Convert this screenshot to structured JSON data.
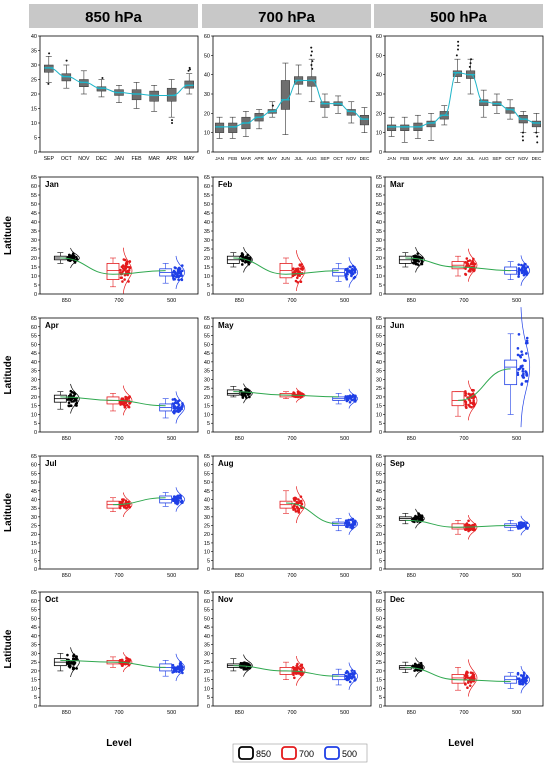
{
  "top_headers": [
    "850 hPa",
    "700 hPa",
    "500 hPa"
  ],
  "y_axis_title": "Latitude",
  "x_axis_title": "Level",
  "legend": {
    "entries": [
      {
        "label": "850",
        "color": "#000000"
      },
      {
        "label": "700",
        "color": "#e31a1c"
      },
      {
        "label": "500",
        "color": "#1f3fe6"
      }
    ]
  },
  "colors": {
    "header_bg": "#c8c8c8",
    "top_box_fill": "#6e6e6e",
    "top_median": "#1fb5c9",
    "top_curve": "#1fb5c9",
    "fit_curve": "#2fa84f"
  },
  "chart_data": [
    {
      "type": "box",
      "panel": "top-850",
      "categories": [
        "SEP",
        "OCT",
        "NOV",
        "DEC",
        "JAN",
        "FEB",
        "MAR",
        "APR",
        "MAY"
      ],
      "ylim": [
        0,
        40
      ],
      "yticks": [
        0,
        5,
        10,
        15,
        20,
        25,
        30,
        35,
        40
      ],
      "median": [
        29,
        26,
        24,
        22,
        20.5,
        20,
        19.5,
        19.5,
        23
      ],
      "q1": [
        27.5,
        24.5,
        22.5,
        21,
        19.5,
        18,
        17.5,
        17.5,
        22
      ],
      "q3": [
        30,
        27,
        25,
        22.5,
        21.5,
        21.5,
        21,
        22,
        24.5
      ],
      "whisker_low": [
        24,
        22,
        20,
        19,
        17,
        15,
        14,
        12,
        20
      ],
      "whisker_high": [
        33,
        30,
        28,
        25,
        23,
        24,
        23,
        25,
        27
      ],
      "outliers": [
        [
          34,
          23.5
        ],
        [
          31.5
        ],
        [],
        [
          25.5
        ],
        [],
        [],
        [],
        [
          10,
          11
        ],
        [
          28,
          28.5,
          29
        ]
      ]
    },
    {
      "type": "box",
      "panel": "top-700",
      "categories": [
        "JAN",
        "FEB",
        "MAR",
        "APR",
        "MAY",
        "JUN",
        "JUL",
        "AUG",
        "SEP",
        "OCT",
        "NOV",
        "DEC"
      ],
      "ylim": [
        0,
        60
      ],
      "yticks": [
        0,
        10,
        20,
        30,
        40,
        50,
        60
      ],
      "median": [
        13,
        13,
        15,
        18,
        21,
        27,
        37,
        37,
        25,
        25,
        21,
        17
      ],
      "q1": [
        10,
        10,
        12,
        16,
        20,
        22,
        35,
        34,
        23,
        24,
        19,
        14
      ],
      "q3": [
        15,
        15,
        18,
        20,
        22,
        37,
        39,
        39,
        26,
        26,
        22,
        19
      ],
      "whisker_low": [
        7,
        7,
        8,
        12,
        18,
        9,
        30,
        26,
        18,
        20,
        15,
        10
      ],
      "whisker_high": [
        18,
        18,
        21,
        22,
        26,
        46,
        45,
        48,
        30,
        29,
        26,
        23
      ],
      "outliers": [
        [],
        [],
        [],
        [],
        [
          24
        ],
        [],
        [],
        [
          43,
          45,
          47,
          50,
          52,
          54
        ],
        [],
        [],
        [],
        []
      ]
    },
    {
      "type": "box",
      "panel": "top-500",
      "categories": [
        "JAN",
        "FEB",
        "MAR",
        "APR",
        "MAY",
        "JUN",
        "JUL",
        "AUG",
        "SEP",
        "OCT",
        "NOV",
        "DEC"
      ],
      "ylim": [
        0,
        60
      ],
      "yticks": [
        0,
        10,
        20,
        30,
        40,
        50,
        60
      ],
      "median": [
        13,
        13,
        13,
        15,
        19,
        41,
        40,
        26,
        25,
        22,
        17,
        15
      ],
      "q1": [
        11,
        11,
        11,
        13,
        17,
        39,
        38,
        24,
        24,
        20,
        15,
        13
      ],
      "q3": [
        14,
        14,
        15,
        16,
        21,
        42,
        42,
        27,
        26,
        23,
        19,
        16
      ],
      "whisker_low": [
        8,
        5,
        7,
        6,
        14,
        36,
        30,
        18,
        20,
        17,
        10,
        10
      ],
      "whisker_high": [
        18,
        18,
        19,
        20,
        24,
        48,
        48,
        32,
        30,
        27,
        21,
        20
      ],
      "outliers": [
        [],
        [],
        [],
        [],
        [],
        [
          50,
          53,
          55,
          57
        ],
        [
          44,
          46,
          48
        ],
        [],
        [],
        [],
        [
          6,
          8,
          10
        ],
        [
          5,
          8,
          10
        ]
      ]
    },
    {
      "type": "box-scatter",
      "panel": "month",
      "title": "Jan",
      "categories": [
        "850",
        "700",
        "500"
      ],
      "ylim": [
        0,
        65
      ],
      "median": [
        20,
        13,
        12
      ],
      "q1": [
        19,
        8,
        10
      ],
      "q3": [
        21,
        17,
        14
      ],
      "whisker_low": [
        17,
        4,
        6
      ],
      "whisker_high": [
        23,
        20,
        17
      ],
      "fit": [
        20,
        11,
        13
      ]
    },
    {
      "type": "box-scatter",
      "panel": "month",
      "title": "Feb",
      "categories": [
        "850",
        "700",
        "500"
      ],
      "ylim": [
        0,
        65
      ],
      "median": [
        19,
        13,
        12
      ],
      "q1": [
        17,
        9,
        10
      ],
      "q3": [
        21,
        17,
        14
      ],
      "whisker_low": [
        15,
        6,
        7
      ],
      "whisker_high": [
        23,
        20,
        17
      ],
      "fit": [
        20,
        11,
        13
      ]
    },
    {
      "type": "box-scatter",
      "panel": "month",
      "title": "Mar",
      "categories": [
        "850",
        "700",
        "500"
      ],
      "ylim": [
        0,
        65
      ],
      "median": [
        19,
        16,
        13
      ],
      "q1": [
        17,
        14,
        11
      ],
      "q3": [
        21,
        18,
        15
      ],
      "whisker_low": [
        15,
        10,
        8
      ],
      "whisker_high": [
        23,
        21,
        18
      ],
      "fit": [
        20,
        15,
        13
      ]
    },
    {
      "type": "box-scatter",
      "panel": "month",
      "title": "Apr",
      "categories": [
        "850",
        "700",
        "500"
      ],
      "ylim": [
        0,
        65
      ],
      "median": [
        19,
        18,
        14
      ],
      "q1": [
        17,
        16,
        12
      ],
      "q3": [
        21,
        20,
        16
      ],
      "whisker_low": [
        13,
        12,
        8
      ],
      "whisker_high": [
        23,
        22,
        19
      ],
      "fit": [
        20,
        18,
        15
      ]
    },
    {
      "type": "box-scatter",
      "panel": "month",
      "title": "May",
      "categories": [
        "850",
        "700",
        "500"
      ],
      "ylim": [
        0,
        65
      ],
      "median": [
        22,
        21,
        19
      ],
      "q1": [
        21,
        20,
        18
      ],
      "q3": [
        24,
        22,
        20
      ],
      "whisker_low": [
        20,
        19,
        16
      ],
      "whisker_high": [
        26,
        23,
        22
      ],
      "fit": [
        23,
        21,
        20
      ]
    },
    {
      "type": "box-scatter",
      "panel": "month",
      "title": "Jun",
      "categories": [
        "850",
        "700",
        "500"
      ],
      "ylim": [
        0,
        65
      ],
      "median": [
        null,
        18,
        37
      ],
      "q1": [
        null,
        15,
        27
      ],
      "q3": [
        null,
        23,
        41
      ],
      "whisker_low": [
        null,
        9,
        10
      ],
      "whisker_high": [
        null,
        23,
        56
      ],
      "fit": [
        null,
        18,
        36
      ]
    },
    {
      "type": "box-scatter",
      "panel": "month",
      "title": "Jul",
      "categories": [
        "850",
        "700",
        "500"
      ],
      "ylim": [
        0,
        65
      ],
      "median": [
        null,
        37,
        40
      ],
      "q1": [
        null,
        35,
        38
      ],
      "q3": [
        null,
        39,
        42
      ],
      "whisker_low": [
        null,
        33,
        36
      ],
      "whisker_high": [
        null,
        41,
        44
      ],
      "fit": [
        null,
        37,
        41
      ]
    },
    {
      "type": "box-scatter",
      "panel": "month",
      "title": "Aug",
      "categories": [
        "850",
        "700",
        "500"
      ],
      "ylim": [
        0,
        65
      ],
      "median": [
        null,
        37,
        26
      ],
      "q1": [
        null,
        35,
        25
      ],
      "q3": [
        null,
        39,
        27
      ],
      "whisker_low": [
        null,
        32,
        22
      ],
      "whisker_high": [
        null,
        45,
        29
      ],
      "fit": [
        null,
        38,
        26
      ]
    },
    {
      "type": "box-scatter",
      "panel": "month",
      "title": "Sep",
      "categories": [
        "850",
        "700",
        "500"
      ],
      "ylim": [
        0,
        65
      ],
      "median": [
        29,
        24,
        25
      ],
      "q1": [
        28,
        23,
        24
      ],
      "q3": [
        30,
        26,
        26
      ],
      "whisker_low": [
        26,
        20,
        22
      ],
      "whisker_high": [
        32,
        28,
        28
      ],
      "fit": [
        28,
        24,
        25
      ]
    },
    {
      "type": "box-scatter",
      "panel": "month",
      "title": "Oct",
      "categories": [
        "850",
        "700",
        "500"
      ],
      "ylim": [
        0,
        65
      ],
      "median": [
        25,
        25,
        22
      ],
      "q1": [
        23,
        24,
        20
      ],
      "q3": [
        27,
        26,
        24
      ],
      "whisker_low": [
        20,
        22,
        17
      ],
      "whisker_high": [
        30,
        28,
        26
      ],
      "fit": [
        26,
        25,
        22
      ]
    },
    {
      "type": "box-scatter",
      "panel": "month",
      "title": "Nov",
      "categories": [
        "850",
        "700",
        "500"
      ],
      "ylim": [
        0,
        65
      ],
      "median": [
        23,
        20,
        17
      ],
      "q1": [
        22,
        18,
        15
      ],
      "q3": [
        24,
        22,
        18
      ],
      "whisker_low": [
        20,
        15,
        12
      ],
      "whisker_high": [
        27,
        25,
        21
      ],
      "fit": [
        23,
        20,
        17
      ]
    },
    {
      "type": "box-scatter",
      "panel": "month",
      "title": "Dec",
      "categories": [
        "850",
        "700",
        "500"
      ],
      "ylim": [
        0,
        65
      ],
      "median": [
        22,
        16,
        15
      ],
      "q1": [
        21,
        13,
        13
      ],
      "q3": [
        23,
        18,
        17
      ],
      "whisker_low": [
        19,
        9,
        10
      ],
      "whisker_high": [
        25,
        22,
        19
      ],
      "fit": [
        22,
        15,
        14
      ]
    }
  ]
}
